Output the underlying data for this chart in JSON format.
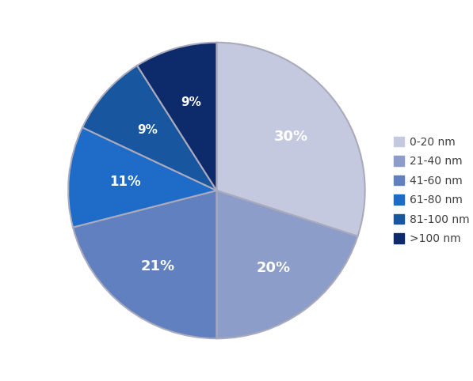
{
  "labels": [
    "0-20 nm",
    "21-40 nm",
    "41-60 nm",
    "61-80 nm",
    "81-100 nm",
    ">100 nm"
  ],
  "values": [
    30,
    20,
    21,
    11,
    9,
    9
  ],
  "colors": [
    "#c5c9df",
    "#8b9dc8",
    "#6080c0",
    "#1e6cc8",
    "#1856a0",
    "#0d2b6b"
  ],
  "pct_labels": [
    "30%",
    "20%",
    "21%",
    "11%",
    "9%",
    "9%"
  ],
  "startangle": 90,
  "text_color": "#ffffff",
  "legend_text_color": "#404040",
  "figsize": [
    5.97,
    4.82
  ],
  "dpi": 100,
  "edge_color": "#aaaabd",
  "edge_width": 1.5
}
